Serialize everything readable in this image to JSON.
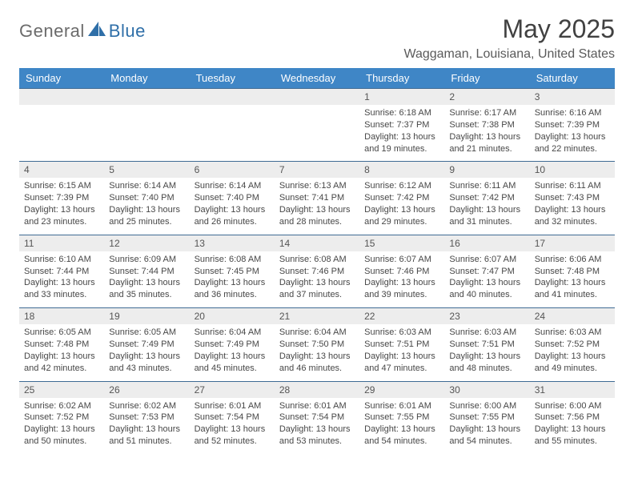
{
  "logo": {
    "text1": "General",
    "text2": "Blue"
  },
  "title": "May 2025",
  "location": "Waggaman, Louisiana, United States",
  "sunrise_label": "Sunrise:",
  "sunset_label": "Sunset:",
  "daylight_label": "Daylight:",
  "headers": [
    "Sunday",
    "Monday",
    "Tuesday",
    "Wednesday",
    "Thursday",
    "Friday",
    "Saturday"
  ],
  "style": {
    "header_bg": "#3f86c6",
    "header_text": "#ffffff",
    "daynum_bg": "#ededed",
    "daynum_text": "#555555",
    "body_text": "#474747",
    "row_border": "#3f6b94",
    "title_color": "#414141",
    "location_color": "#5a5a5a",
    "logo_gray": "#6b6b6b",
    "logo_blue": "#2f6fa8",
    "month_fontsize": 32,
    "location_fontsize": 16,
    "header_fontsize": 13,
    "daynum_fontsize": 12,
    "body_fontsize": 11
  },
  "weeks": [
    [
      null,
      null,
      null,
      null,
      {
        "n": "1",
        "sr": "6:18 AM",
        "ss": "7:37 PM",
        "dl": "13 hours and 19 minutes."
      },
      {
        "n": "2",
        "sr": "6:17 AM",
        "ss": "7:38 PM",
        "dl": "13 hours and 21 minutes."
      },
      {
        "n": "3",
        "sr": "6:16 AM",
        "ss": "7:39 PM",
        "dl": "13 hours and 22 minutes."
      }
    ],
    [
      {
        "n": "4",
        "sr": "6:15 AM",
        "ss": "7:39 PM",
        "dl": "13 hours and 23 minutes."
      },
      {
        "n": "5",
        "sr": "6:14 AM",
        "ss": "7:40 PM",
        "dl": "13 hours and 25 minutes."
      },
      {
        "n": "6",
        "sr": "6:14 AM",
        "ss": "7:40 PM",
        "dl": "13 hours and 26 minutes."
      },
      {
        "n": "7",
        "sr": "6:13 AM",
        "ss": "7:41 PM",
        "dl": "13 hours and 28 minutes."
      },
      {
        "n": "8",
        "sr": "6:12 AM",
        "ss": "7:42 PM",
        "dl": "13 hours and 29 minutes."
      },
      {
        "n": "9",
        "sr": "6:11 AM",
        "ss": "7:42 PM",
        "dl": "13 hours and 31 minutes."
      },
      {
        "n": "10",
        "sr": "6:11 AM",
        "ss": "7:43 PM",
        "dl": "13 hours and 32 minutes."
      }
    ],
    [
      {
        "n": "11",
        "sr": "6:10 AM",
        "ss": "7:44 PM",
        "dl": "13 hours and 33 minutes."
      },
      {
        "n": "12",
        "sr": "6:09 AM",
        "ss": "7:44 PM",
        "dl": "13 hours and 35 minutes."
      },
      {
        "n": "13",
        "sr": "6:08 AM",
        "ss": "7:45 PM",
        "dl": "13 hours and 36 minutes."
      },
      {
        "n": "14",
        "sr": "6:08 AM",
        "ss": "7:46 PM",
        "dl": "13 hours and 37 minutes."
      },
      {
        "n": "15",
        "sr": "6:07 AM",
        "ss": "7:46 PM",
        "dl": "13 hours and 39 minutes."
      },
      {
        "n": "16",
        "sr": "6:07 AM",
        "ss": "7:47 PM",
        "dl": "13 hours and 40 minutes."
      },
      {
        "n": "17",
        "sr": "6:06 AM",
        "ss": "7:48 PM",
        "dl": "13 hours and 41 minutes."
      }
    ],
    [
      {
        "n": "18",
        "sr": "6:05 AM",
        "ss": "7:48 PM",
        "dl": "13 hours and 42 minutes."
      },
      {
        "n": "19",
        "sr": "6:05 AM",
        "ss": "7:49 PM",
        "dl": "13 hours and 43 minutes."
      },
      {
        "n": "20",
        "sr": "6:04 AM",
        "ss": "7:49 PM",
        "dl": "13 hours and 45 minutes."
      },
      {
        "n": "21",
        "sr": "6:04 AM",
        "ss": "7:50 PM",
        "dl": "13 hours and 46 minutes."
      },
      {
        "n": "22",
        "sr": "6:03 AM",
        "ss": "7:51 PM",
        "dl": "13 hours and 47 minutes."
      },
      {
        "n": "23",
        "sr": "6:03 AM",
        "ss": "7:51 PM",
        "dl": "13 hours and 48 minutes."
      },
      {
        "n": "24",
        "sr": "6:03 AM",
        "ss": "7:52 PM",
        "dl": "13 hours and 49 minutes."
      }
    ],
    [
      {
        "n": "25",
        "sr": "6:02 AM",
        "ss": "7:52 PM",
        "dl": "13 hours and 50 minutes."
      },
      {
        "n": "26",
        "sr": "6:02 AM",
        "ss": "7:53 PM",
        "dl": "13 hours and 51 minutes."
      },
      {
        "n": "27",
        "sr": "6:01 AM",
        "ss": "7:54 PM",
        "dl": "13 hours and 52 minutes."
      },
      {
        "n": "28",
        "sr": "6:01 AM",
        "ss": "7:54 PM",
        "dl": "13 hours and 53 minutes."
      },
      {
        "n": "29",
        "sr": "6:01 AM",
        "ss": "7:55 PM",
        "dl": "13 hours and 54 minutes."
      },
      {
        "n": "30",
        "sr": "6:00 AM",
        "ss": "7:55 PM",
        "dl": "13 hours and 54 minutes."
      },
      {
        "n": "31",
        "sr": "6:00 AM",
        "ss": "7:56 PM",
        "dl": "13 hours and 55 minutes."
      }
    ]
  ]
}
